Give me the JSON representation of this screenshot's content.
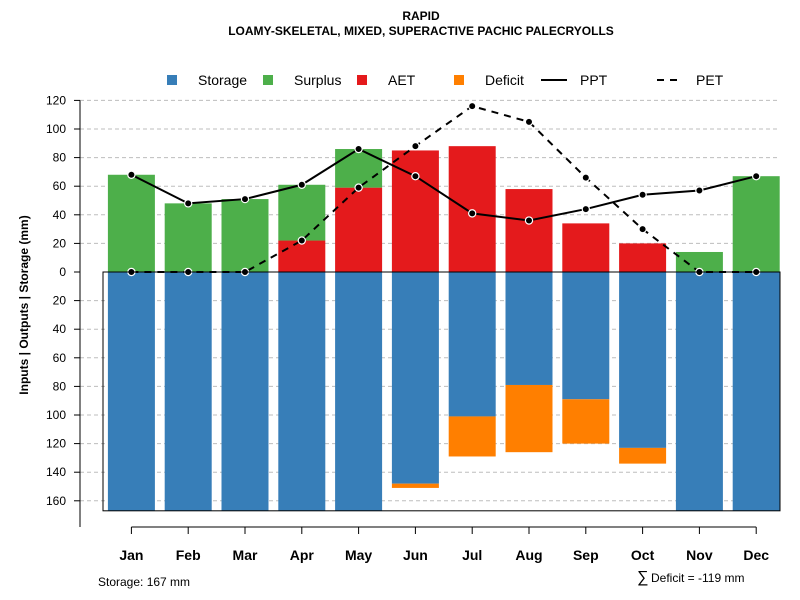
{
  "chart_data": {
    "type": "bar",
    "title": "RAPID",
    "subtitle": "LOAMY-SKELETAL, MIXED, SUPERACTIVE PACHIC PALECRYOLLS",
    "ylabel": "Inputs | Outputs | Storage    (mm)",
    "categories": [
      "Jan",
      "Feb",
      "Mar",
      "Apr",
      "May",
      "Jun",
      "Jul",
      "Aug",
      "Sep",
      "Oct",
      "Nov",
      "Dec"
    ],
    "ylim": [
      -167,
      120
    ],
    "yticks": [
      120,
      100,
      80,
      60,
      40,
      20,
      0,
      -20,
      -40,
      -60,
      -80,
      -100,
      -120,
      -140,
      -160
    ],
    "ytick_labels": [
      "120",
      "100",
      "80",
      "60",
      "40",
      "20",
      "0",
      "20",
      "40",
      "60",
      "80",
      "100",
      "120",
      "140",
      "160"
    ],
    "legend": [
      {
        "name": "Storage",
        "kind": "square",
        "color": "#377EB8"
      },
      {
        "name": "Surplus",
        "kind": "square",
        "color": "#4DAF4A"
      },
      {
        "name": "AET",
        "kind": "square",
        "color": "#E41A1C"
      },
      {
        "name": "Deficit",
        "kind": "square",
        "color": "#FF7F00"
      },
      {
        "name": "PPT",
        "kind": "solid-line",
        "color": "#000000"
      },
      {
        "name": "PET",
        "kind": "dashed-line",
        "color": "#000000"
      }
    ],
    "series": [
      {
        "name": "Storage",
        "color": "#377EB8",
        "values": [
          -167,
          -167,
          -167,
          -167,
          -167,
          -148,
          -101,
          -79,
          -89,
          -123,
          -167,
          -167
        ]
      },
      {
        "name": "Deficit",
        "color": "#FF7F00",
        "values": [
          0,
          0,
          0,
          0,
          0,
          -3,
          -28,
          -47,
          -31,
          -11,
          0,
          0
        ]
      },
      {
        "name": "AET",
        "color": "#E41A1C",
        "values": [
          0,
          0,
          0,
          22,
          59,
          85,
          88,
          58,
          34,
          20,
          0,
          0
        ]
      },
      {
        "name": "Surplus",
        "color": "#4DAF4A",
        "values": [
          68,
          48,
          51,
          39,
          27,
          0,
          0,
          0,
          0,
          0,
          14,
          67
        ]
      },
      {
        "name": "PPT",
        "color": "#000000",
        "values": [
          68,
          48,
          51,
          61,
          86,
          67,
          41,
          36,
          44,
          54,
          57,
          67
        ]
      },
      {
        "name": "PET",
        "color": "#000000",
        "values": [
          0,
          0,
          0,
          22,
          59,
          88,
          116,
          105,
          66,
          30,
          0,
          0
        ]
      }
    ],
    "annotations": {
      "storage": "Storage: 167 mm",
      "deficit_symbol": "∑",
      "deficit": "Deficit = -119 mm"
    },
    "grid": true
  }
}
